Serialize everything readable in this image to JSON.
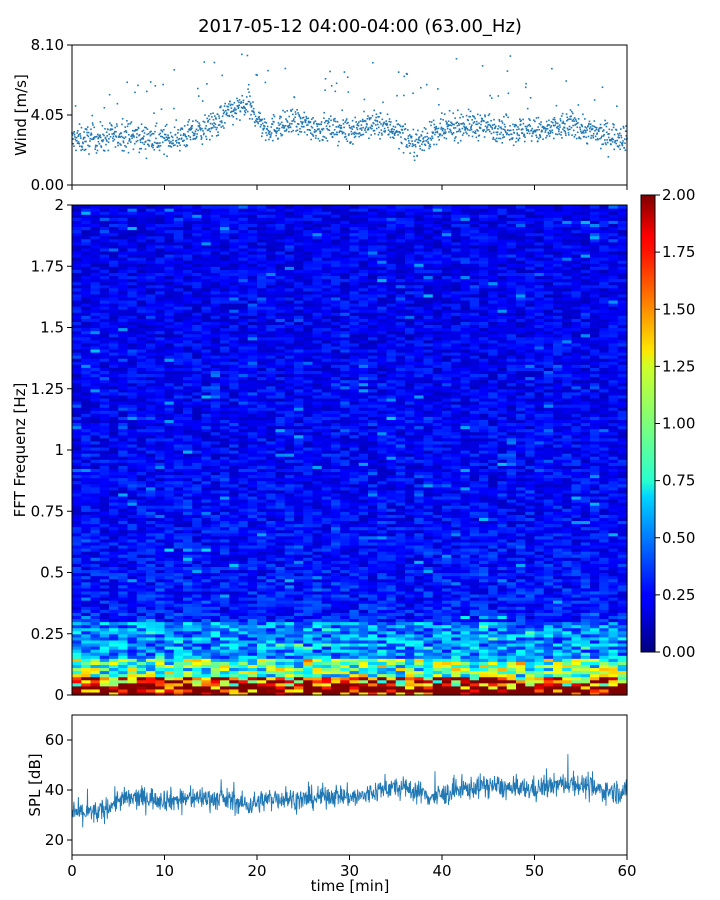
{
  "title": "2017-05-12 04:00-04:00 (63.00_Hz)",
  "chart_data": [
    {
      "name": "wind",
      "type": "scatter",
      "ylabel": "Wind [m/s]",
      "xlim": [
        0,
        60
      ],
      "ylim": [
        0,
        8.1
      ],
      "yticks": [
        "0.00",
        "4.05",
        "8.10"
      ],
      "marker_color": "#1f77b4",
      "baseline_approx": [
        [
          0,
          2.6
        ],
        [
          3,
          2.7
        ],
        [
          6,
          2.9
        ],
        [
          9,
          2.6
        ],
        [
          12,
          2.8
        ],
        [
          15,
          3.4
        ],
        [
          17,
          4.2
        ],
        [
          19,
          4.6
        ],
        [
          21,
          3.2
        ],
        [
          24,
          3.6
        ],
        [
          27,
          3.3
        ],
        [
          30,
          3.2
        ],
        [
          33,
          3.5
        ],
        [
          35,
          3.2
        ],
        [
          37,
          2.4
        ],
        [
          39,
          2.9
        ],
        [
          42,
          3.5
        ],
        [
          45,
          3.4
        ],
        [
          48,
          3.2
        ],
        [
          51,
          3.1
        ],
        [
          54,
          3.5
        ],
        [
          57,
          2.9
        ],
        [
          60,
          2.8
        ]
      ],
      "points_approx": 3600
    },
    {
      "name": "spectrogram",
      "type": "heatmap",
      "ylabel": "FFT Frequenz [Hz]",
      "xlim": [
        0,
        60
      ],
      "ylim": [
        0,
        2
      ],
      "yticks": [
        "0",
        "0.25",
        "0.5",
        "0.75",
        "1",
        "1.25",
        "1.5",
        "1.75",
        "2"
      ],
      "colormap": "jet",
      "color_range": [
        0,
        2
      ],
      "colorbar_ticks": [
        "0.00",
        "0.25",
        "0.50",
        "0.75",
        "1.00",
        "1.25",
        "1.50",
        "1.75",
        "2.00"
      ],
      "time_bins": 60,
      "freq_bins": 160,
      "typical_value_high_freq": 0.2,
      "typical_value_low_freq": 1.5
    },
    {
      "name": "spl",
      "type": "line",
      "xlabel": "time [min]",
      "ylabel": "SPL [dB]",
      "xlim": [
        0,
        60
      ],
      "ylim": [
        14,
        70
      ],
      "xticks": [
        "0",
        "10",
        "20",
        "30",
        "40",
        "50",
        "60"
      ],
      "yticks": [
        "20",
        "40",
        "60"
      ],
      "line_color": "#1f77b4",
      "mean_approx": [
        [
          0,
          31
        ],
        [
          3,
          31
        ],
        [
          5,
          36
        ],
        [
          8,
          37
        ],
        [
          11,
          36
        ],
        [
          14,
          37
        ],
        [
          17,
          36
        ],
        [
          19,
          34
        ],
        [
          22,
          37
        ],
        [
          25,
          36
        ],
        [
          28,
          38
        ],
        [
          31,
          37
        ],
        [
          34,
          41
        ],
        [
          37,
          40
        ],
        [
          39,
          37
        ],
        [
          42,
          40
        ],
        [
          45,
          42
        ],
        [
          48,
          40
        ],
        [
          51,
          41
        ],
        [
          54,
          43
        ],
        [
          57,
          40
        ],
        [
          60,
          39
        ]
      ]
    }
  ]
}
